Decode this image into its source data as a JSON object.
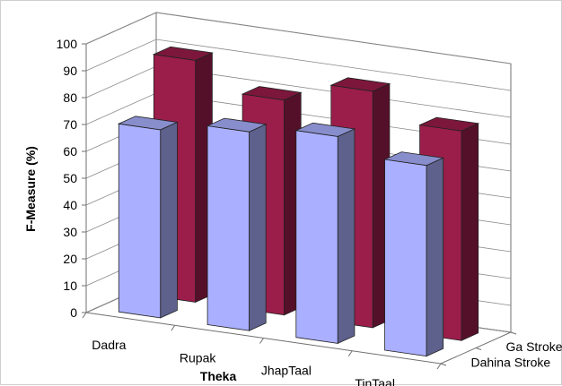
{
  "chart_data": {
    "type": "bar",
    "categories": [
      "Dadra",
      "Rupak",
      "JhapTaal",
      "TinTaal"
    ],
    "series": [
      {
        "name": "Dahina Stroke",
        "values": [
          70,
          74,
          77,
          71
        ],
        "color": "#aab0ff"
      },
      {
        "name": "Ga Stroke",
        "values": [
          90,
          80,
          88,
          78
        ],
        "color": "#9b1d4a"
      }
    ],
    "ylabel": "F-Measure (%)",
    "xlabel": "Theka",
    "ylim": [
      0,
      100
    ],
    "yticks": [
      "0",
      "10",
      "20",
      "30",
      "40",
      "50",
      "60",
      "70",
      "80",
      "90",
      "100"
    ],
    "grid": true,
    "view": "3d"
  }
}
